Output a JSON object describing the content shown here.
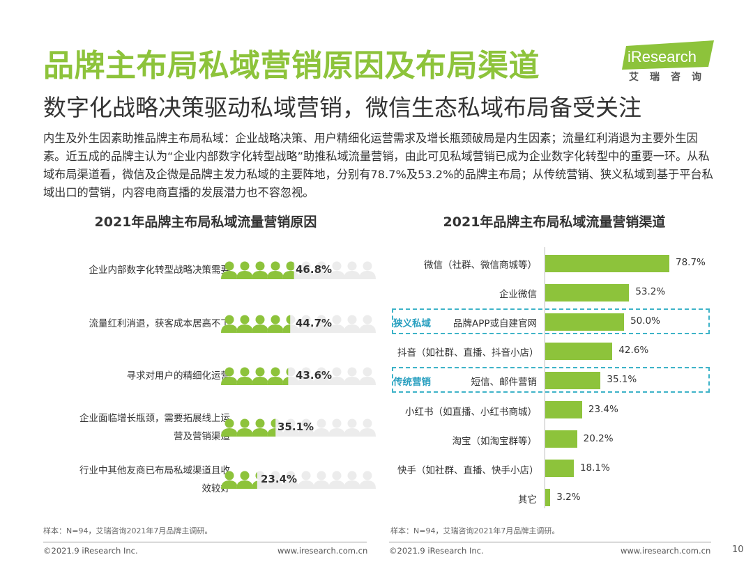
{
  "header": {
    "title": "品牌主布局私域营销原因及布局渠道",
    "subtitle": "数字化战略决策驱动私域营销，微信生态私域布局备受关注"
  },
  "logo": {
    "brand": "iResearch",
    "cn": "艾瑞咨询",
    "brand_color": "#8dc33b"
  },
  "description": "内生及外生因素助推品牌主布局私域：企业战略决策、用户精细化运营需求及增长瓶颈破局是内生因素；流量红利消退为主要外生因素。近五成的品牌主认为“企业内部数字化转型战略”助推私域流量营销，由此可见私域营销已成为企业数字化转型中的重要一环。从私域布局渠道看，微信及企微是品牌主发力私域的主要阵地，分别有78.7%及53.2%的品牌主布局；从传统营销、狭义私域到基于平台私域出口的营销，内容电商直播的发展潜力也不容忽视。",
  "colors": {
    "accent": "#8dc33b",
    "person_empty": "#ececec",
    "dashed": "#3eb3c8",
    "group_text": "#2aa0c0"
  },
  "chart_data": [
    {
      "type": "bar",
      "title": "2021年品牌主布局私域流量营销原因",
      "categories": [
        "企业内部数字化转型战略决策需要",
        "流量红利消退，获客成本居高不下",
        "寻求对用户的精细化运营",
        "企业面临增长瓶颈，需要拓展线上运营及营销渠道",
        "行业中其他友商已布局私域渠道且收效较好"
      ],
      "category_lines": [
        [
          "企业内部数字化转型战略决策需要"
        ],
        [
          "流量红利消退，获客成本居高不下"
        ],
        [
          "寻求对用户的精细化运营"
        ],
        [
          "企业面临增长瓶颈，需要拓展线上运",
          "营及营销渠道"
        ],
        [
          "行业中其他友商已布局私域渠道且收",
          "效较好"
        ]
      ],
      "values": [
        46.8,
        44.7,
        43.6,
        35.1,
        23.4
      ],
      "labels": [
        "46.8%",
        "44.7%",
        "43.6%",
        "35.1%",
        "23.4%"
      ],
      "icon": "person-icon",
      "icons_total": 10
    },
    {
      "type": "bar",
      "orientation": "horizontal",
      "title": "2021年品牌主布局私域流量营销渠道",
      "categories": [
        "微信（社群、微信商城等）",
        "企业微信",
        "品牌APP或自建官网",
        "抖音（如社群、直播、抖音小店）",
        "短信、邮件营销",
        "小红书（如直播、小红书商城）",
        "淘宝（如淘宝群等）",
        "快手（如社群、直播、快手小店）",
        "其它"
      ],
      "values": [
        78.7,
        53.2,
        50.0,
        42.6,
        35.1,
        23.4,
        20.2,
        18.1,
        3.2
      ],
      "labels": [
        "78.7%",
        "53.2%",
        "50.0%",
        "42.6%",
        "35.1%",
        "23.4%",
        "20.2%",
        "18.1%",
        "3.2%"
      ],
      "groups": [
        {
          "label": "狭义私域",
          "category_index": 2
        },
        {
          "label": "传统营销",
          "category_index": 4
        }
      ]
    }
  ],
  "footer": {
    "note_left": "样本：N=94，艾瑞咨询2021年7月品牌主调研。",
    "note_right": "样本：N=94，艾瑞咨询2021年7月品牌主调研。",
    "copyright_left": "©2021.9 iResearch Inc.",
    "url_left": "www.iresearch.com.cn",
    "copyright_right": "©2021.9 iResearch Inc.",
    "url_right": "www.iresearch.com.cn",
    "page": "10"
  }
}
